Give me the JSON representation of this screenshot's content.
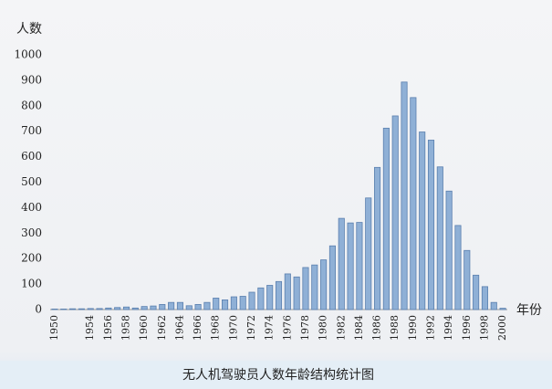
{
  "chart_data": {
    "type": "bar",
    "title": "无人机驾驶员人数年龄结构统计图",
    "y_label": "人数",
    "x_label": "年份",
    "categories": [
      "1950",
      null,
      null,
      null,
      "1954",
      null,
      "1956",
      null,
      "1958",
      null,
      "1960",
      null,
      "1962",
      null,
      "1964",
      null,
      "1966",
      null,
      "1968",
      null,
      "1970",
      null,
      "1972",
      null,
      "1974",
      null,
      "1976",
      null,
      "1978",
      null,
      "1980",
      null,
      "1982",
      null,
      "1984",
      null,
      "1986",
      null,
      "1988",
      null,
      "1990",
      null,
      "1992",
      null,
      "1994",
      null,
      "1996",
      null,
      "1998",
      null,
      "2000"
    ],
    "values": [
      2,
      2,
      3,
      3,
      4,
      4,
      6,
      8,
      10,
      6,
      12,
      14,
      20,
      28,
      28,
      15,
      20,
      28,
      45,
      38,
      50,
      52,
      68,
      85,
      95,
      110,
      140,
      128,
      165,
      175,
      195,
      250,
      358,
      340,
      342,
      438,
      558,
      712,
      760,
      893,
      832,
      697,
      665,
      560,
      465,
      330,
      232,
      135,
      90,
      28,
      5
    ],
    "color": "#8fb0d6",
    "ylim": [
      0,
      1000
    ],
    "yticks": [
      0,
      100,
      200,
      300,
      400,
      500,
      600,
      700,
      800,
      900,
      1000
    ],
    "grid": false
  }
}
